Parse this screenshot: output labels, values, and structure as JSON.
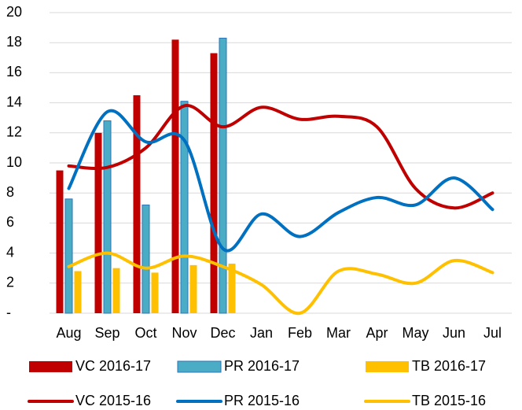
{
  "chart_data": {
    "type": "combo",
    "categories": [
      "Aug",
      "Sep",
      "Oct",
      "Nov",
      "Dec",
      "Jan",
      "Feb",
      "Mar",
      "Apr",
      "May",
      "Jun",
      "Jul"
    ],
    "ylim": [
      0,
      20
    ],
    "yticks": [
      {
        "value": 0,
        "label": "-"
      },
      2,
      4,
      6,
      8,
      10,
      12,
      14,
      16,
      18,
      20
    ],
    "grid": true,
    "legend": "bottom",
    "series": [
      {
        "name": "VC 2016-17",
        "type": "bar",
        "color": "#c00000",
        "values": [
          9.5,
          12,
          14.5,
          18.2,
          17.3,
          null,
          null,
          null,
          null,
          null,
          null,
          null
        ]
      },
      {
        "name": "PR 2016-17",
        "type": "bar",
        "color": "#4bacc6",
        "values": [
          7.6,
          12.8,
          7.2,
          14.1,
          18.3,
          null,
          null,
          null,
          null,
          null,
          null,
          null
        ]
      },
      {
        "name": "TB 2016-17",
        "type": "bar",
        "color": "#ffc000",
        "values": [
          2.8,
          3.0,
          2.7,
          3.2,
          3.3,
          null,
          null,
          null,
          null,
          null,
          null,
          null
        ]
      },
      {
        "name": "VC 2015-16",
        "type": "line",
        "color": "#c00000",
        "values": [
          9.8,
          9.7,
          11,
          13.8,
          12.4,
          13.7,
          12.9,
          13.1,
          12.4,
          8.3,
          7.0,
          8.0
        ]
      },
      {
        "name": "PR 2015-16",
        "type": "line",
        "color": "#0070c0",
        "values": [
          8.3,
          13.4,
          11.4,
          11.5,
          4.3,
          6.6,
          5.1,
          6.7,
          7.7,
          7.2,
          9.0,
          6.9
        ]
      },
      {
        "name": "TB 2015-16",
        "type": "line",
        "color": "#ffc000",
        "values": [
          3.1,
          4.0,
          3.0,
          3.8,
          3.1,
          1.9,
          0.0,
          2.8,
          2.6,
          2.0,
          3.5,
          2.7
        ]
      }
    ]
  }
}
